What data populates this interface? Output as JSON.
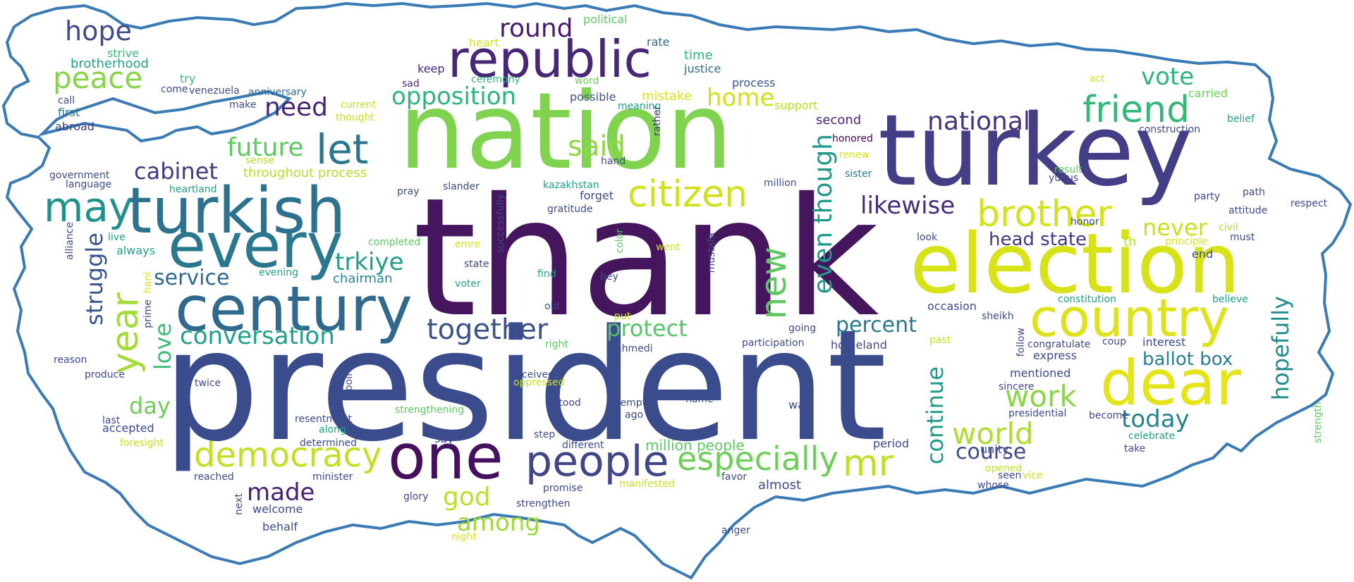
{
  "words": [
    {
      "t": "thank",
      "c": "#45155d"
    },
    {
      "t": "president",
      "c": "#3b4c8c"
    },
    {
      "t": "nation",
      "c": "#7fd34e"
    },
    {
      "t": "turkey",
      "c": "#433e85"
    },
    {
      "t": "election",
      "c": "#d8e219"
    },
    {
      "t": "turkish",
      "c": "#2c728e"
    },
    {
      "t": "century",
      "c": "#31688e"
    },
    {
      "t": "every",
      "c": "#2a788e"
    },
    {
      "t": "republic",
      "c": "#482777"
    },
    {
      "t": "one",
      "c": "#45115f"
    },
    {
      "t": "dear",
      "c": "#e5e419"
    },
    {
      "t": "country",
      "c": "#dde318"
    },
    {
      "t": "people",
      "c": "#404688"
    },
    {
      "t": "democracy",
      "c": "#c2df23"
    },
    {
      "t": "brother",
      "c": "#d2e21b"
    },
    {
      "t": "citizen",
      "c": "#d0e11c"
    },
    {
      "t": "friend",
      "c": "#35b779"
    },
    {
      "t": "may",
      "c": "#21918c"
    },
    {
      "t": "let",
      "c": "#2a768e"
    },
    {
      "t": "new",
      "c": "#5ec962"
    },
    {
      "t": "especially",
      "c": "#6ece58"
    },
    {
      "t": "year",
      "c": "#a5db36"
    },
    {
      "t": "mr",
      "c": "#bddf26"
    },
    {
      "t": "world",
      "c": "#addc30"
    },
    {
      "t": "work",
      "c": "#8bd646"
    },
    {
      "t": "opposition",
      "c": "#2fb47c"
    },
    {
      "t": "national",
      "c": "#46327e"
    },
    {
      "t": "together",
      "c": "#3b528b"
    },
    {
      "t": "said",
      "c": "#8fd744"
    },
    {
      "t": "future",
      "c": "#5ec962"
    },
    {
      "t": "conversation",
      "c": "#1fa187"
    },
    {
      "t": "protect",
      "c": "#54c568"
    },
    {
      "t": "round",
      "c": "#481a6c"
    },
    {
      "t": "peace",
      "c": "#86d549"
    },
    {
      "t": "hope",
      "c": "#3e4a89"
    },
    {
      "t": "need",
      "c": "#482475"
    },
    {
      "t": "home",
      "c": "#d0e11c"
    },
    {
      "t": "vote",
      "c": "#2fb47c"
    },
    {
      "t": "cabinet",
      "c": "#443a83"
    },
    {
      "t": "service",
      "c": "#31688e"
    },
    {
      "t": "struggle",
      "c": "#39568c"
    },
    {
      "t": "love",
      "c": "#3bbb75"
    },
    {
      "t": "trkiye",
      "c": "#1f9e89"
    },
    {
      "t": "likewise",
      "c": "#472c7a"
    },
    {
      "t": "even though",
      "c": "#1f9a8a"
    },
    {
      "t": "never",
      "c": "#c8e020"
    },
    {
      "t": "today",
      "c": "#26828e"
    },
    {
      "t": "hopefully",
      "c": "#228c8d"
    },
    {
      "t": "continue",
      "c": "#1e9c89"
    },
    {
      "t": "course",
      "c": "#3f4889"
    },
    {
      "t": "percent",
      "c": "#2a788e"
    },
    {
      "t": "ballot box",
      "c": "#277f8e"
    },
    {
      "t": "head state",
      "c": "#453781"
    },
    {
      "t": "day",
      "c": "#6ece58"
    },
    {
      "t": "made",
      "c": "#482173"
    },
    {
      "t": "god",
      "c": "#bddf26"
    },
    {
      "t": "among",
      "c": "#9fda3a"
    },
    {
      "t": "million people",
      "c": "#5ec962"
    },
    {
      "t": "chairman",
      "c": "#25858e"
    },
    {
      "t": "political",
      "c": "#5ec962"
    },
    {
      "t": "heart",
      "c": "#d8e219"
    },
    {
      "t": "rate",
      "c": "#31688e"
    },
    {
      "t": "time",
      "c": "#2fb47c"
    },
    {
      "t": "justice",
      "c": "#31688e"
    },
    {
      "t": "keep",
      "c": "#482878"
    },
    {
      "t": "ceremony",
      "c": "#2fb47c"
    },
    {
      "t": "word",
      "c": "#6ece58"
    },
    {
      "t": "process",
      "c": "#3b528b"
    },
    {
      "t": "act",
      "c": "#d8e219"
    },
    {
      "t": "carried",
      "c": "#6ece58"
    },
    {
      "t": "strive",
      "c": "#3bbb75"
    },
    {
      "t": "brotherhood",
      "c": "#1fa187"
    },
    {
      "t": "try",
      "c": "#3bbb75"
    },
    {
      "t": "come",
      "c": "#3e4a89"
    },
    {
      "t": "venezuela",
      "c": "#3e4a89"
    },
    {
      "t": "anniversary",
      "c": "#31688e"
    },
    {
      "t": "sad",
      "c": "#482878"
    },
    {
      "t": "possible",
      "c": "#3b528b"
    },
    {
      "t": "meaning",
      "c": "#1f9e89"
    },
    {
      "t": "mistake",
      "c": "#d8e219"
    },
    {
      "t": "support",
      "c": "#b5de2b"
    },
    {
      "t": "belief",
      "c": "#1fa187"
    },
    {
      "t": "call",
      "c": "#3e4a89"
    },
    {
      "t": "first",
      "c": "#2a788e"
    },
    {
      "t": "make",
      "c": "#3e4a89"
    },
    {
      "t": "current",
      "c": "#c8e020"
    },
    {
      "t": "thought",
      "c": "#c8e020"
    },
    {
      "t": "second",
      "c": "#482475"
    },
    {
      "t": "construction",
      "c": "#3e4a89"
    },
    {
      "t": "abroad",
      "c": "#433e85"
    },
    {
      "t": "rather",
      "c": "#46327e"
    },
    {
      "t": "honored",
      "c": "#440154"
    },
    {
      "t": "hand",
      "c": "#3e4a89"
    },
    {
      "t": "renew",
      "c": "#d8e219"
    },
    {
      "t": "sense",
      "c": "#b5de2b"
    },
    {
      "t": "throughout process",
      "c": "#b5de2b"
    },
    {
      "t": "government",
      "c": "#3e4a89"
    },
    {
      "t": "language",
      "c": "#3e4a89"
    },
    {
      "t": "heartland",
      "c": "#1fa187"
    },
    {
      "t": "sister",
      "c": "#2a788e"
    },
    {
      "t": "result",
      "c": "#5ec962"
    },
    {
      "t": "yunus",
      "c": "#3e4a89"
    },
    {
      "t": "path",
      "c": "#3e4a89"
    },
    {
      "t": "respect",
      "c": "#3e4a89"
    },
    {
      "t": "party",
      "c": "#3e4a89"
    },
    {
      "t": "pray",
      "c": "#3e4a89"
    },
    {
      "t": "slander",
      "c": "#3e4a89"
    },
    {
      "t": "kazakhstan",
      "c": "#1fa187"
    },
    {
      "t": "forget",
      "c": "#3e4a89"
    },
    {
      "t": "million",
      "c": "#3e4a89"
    },
    {
      "t": "gratitude",
      "c": "#3e4a89"
    },
    {
      "t": "successfully",
      "c": "#3e4a89"
    },
    {
      "t": "attitude",
      "c": "#3e4a89"
    },
    {
      "t": "honor",
      "c": "#3e4a89"
    },
    {
      "t": "look",
      "c": "#3e4a89"
    },
    {
      "t": "th",
      "c": "#b5de2b"
    },
    {
      "t": "civil",
      "c": "#b5de2b"
    },
    {
      "t": "must",
      "c": "#3e4a89"
    },
    {
      "t": "end",
      "c": "#3e4a89"
    },
    {
      "t": "principle",
      "c": "#d8e219"
    },
    {
      "t": "live",
      "c": "#1fa187"
    },
    {
      "t": "alliance",
      "c": "#3e4a89"
    },
    {
      "t": "always",
      "c": "#1fa187"
    },
    {
      "t": "completed",
      "c": "#5ec962"
    },
    {
      "t": "emre",
      "c": "#d8e219"
    },
    {
      "t": "color",
      "c": "#5ec962"
    },
    {
      "t": "mustafa",
      "c": "#3e4a89"
    },
    {
      "t": "went",
      "c": "#c8e020"
    },
    {
      "t": "evening",
      "c": "#1fa187"
    },
    {
      "t": "hani",
      "c": "#d8e219"
    },
    {
      "t": "state",
      "c": "#3e4a89"
    },
    {
      "t": "find",
      "c": "#1fa187"
    },
    {
      "t": "bey",
      "c": "#3e4a89"
    },
    {
      "t": "voter",
      "c": "#1fa187"
    },
    {
      "t": "constitution",
      "c": "#1fa187"
    },
    {
      "t": "believe",
      "c": "#1fa187"
    },
    {
      "t": "prime",
      "c": "#3e4a89"
    },
    {
      "t": "old",
      "c": "#3e4a89"
    },
    {
      "t": "occasion",
      "c": "#3e4a89"
    },
    {
      "t": "sheikh",
      "c": "#3e4a89"
    },
    {
      "t": "put",
      "c": "#c8e020"
    },
    {
      "t": "going",
      "c": "#3e4a89"
    },
    {
      "t": "follow",
      "c": "#3e4a89"
    },
    {
      "t": "coup",
      "c": "#3e4a89"
    },
    {
      "t": "congratulate",
      "c": "#3e4a89"
    },
    {
      "t": "interest",
      "c": "#3e4a89"
    },
    {
      "t": "past",
      "c": "#c8e020"
    },
    {
      "t": "reason",
      "c": "#3e4a89"
    },
    {
      "t": "right",
      "c": "#5ec962"
    },
    {
      "t": "ahmedi",
      "c": "#3e4a89"
    },
    {
      "t": "participation",
      "c": "#3e4a89"
    },
    {
      "t": "homeland",
      "c": "#3e4a89"
    },
    {
      "t": "express",
      "c": "#3e4a89"
    },
    {
      "t": "produce",
      "c": "#3e4a89"
    },
    {
      "t": "received",
      "c": "#3e4a89"
    },
    {
      "t": "oppressed",
      "c": "#c8e020"
    },
    {
      "t": "mentioned",
      "c": "#3e4a89"
    },
    {
      "t": "poll",
      "c": "#3e4a89"
    },
    {
      "t": "sincere",
      "c": "#3e4a89"
    },
    {
      "t": "twice",
      "c": "#3e4a89"
    },
    {
      "t": "stood",
      "c": "#3e4a89"
    },
    {
      "t": "attempt",
      "c": "#3e4a89"
    },
    {
      "t": "name",
      "c": "#3e4a89"
    },
    {
      "t": "strengthening",
      "c": "#5ec962"
    },
    {
      "t": "way",
      "c": "#3e4a89"
    },
    {
      "t": "presidential",
      "c": "#3e4a89"
    },
    {
      "t": "last",
      "c": "#3e4a89"
    },
    {
      "t": "resentment",
      "c": "#3e4a89"
    },
    {
      "t": "ago",
      "c": "#3e4a89"
    },
    {
      "t": "become",
      "c": "#3e4a89"
    },
    {
      "t": "strength",
      "c": "#5ec962"
    },
    {
      "t": "accepted",
      "c": "#3e4a89"
    },
    {
      "t": "along",
      "c": "#1fa187"
    },
    {
      "t": "celebrate",
      "c": "#1fa187"
    },
    {
      "t": "say",
      "c": "#3e4a89"
    },
    {
      "t": "step",
      "c": "#3e4a89"
    },
    {
      "t": "foresight",
      "c": "#c8e020"
    },
    {
      "t": "determined",
      "c": "#3e4a89"
    },
    {
      "t": "different",
      "c": "#3e4a89"
    },
    {
      "t": "period",
      "c": "#3e4a89"
    },
    {
      "t": "take",
      "c": "#3e4a89"
    },
    {
      "t": "unity",
      "c": "#3e4a89"
    },
    {
      "t": "reached",
      "c": "#3e4a89"
    },
    {
      "t": "minister",
      "c": "#3e4a89"
    },
    {
      "t": "opened",
      "c": "#c8e020"
    },
    {
      "t": "vice",
      "c": "#c8e020"
    },
    {
      "t": "seen",
      "c": "#3e4a89"
    },
    {
      "t": "favor",
      "c": "#3e4a89"
    },
    {
      "t": "whose",
      "c": "#3e4a89"
    },
    {
      "t": "next",
      "c": "#3e4a89"
    },
    {
      "t": "manifested",
      "c": "#c8e020"
    },
    {
      "t": "almost",
      "c": "#3e4a89"
    },
    {
      "t": "promise",
      "c": "#3e4a89"
    },
    {
      "t": "welcome",
      "c": "#3e4a89"
    },
    {
      "t": "glory",
      "c": "#3e4a89"
    },
    {
      "t": "strengthen",
      "c": "#3e4a89"
    },
    {
      "t": "behalf",
      "c": "#3e4a89"
    },
    {
      "t": "night",
      "c": "#d8e219"
    },
    {
      "t": "anger",
      "c": "#3e4a89"
    }
  ],
  "outline_color": "#3a7ab5"
}
